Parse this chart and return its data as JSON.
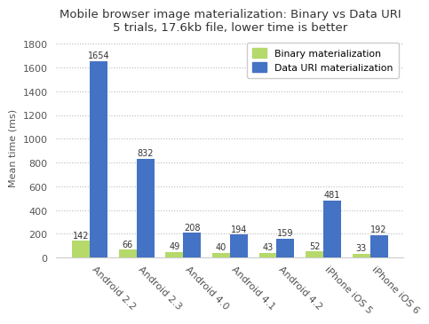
{
  "title_line1": "Mobile browser image materialization: Binary vs Data URI",
  "title_line2": "5 trials, 17.6kb file, lower time is better",
  "categories": [
    "Android 2.2",
    "Android 2.3",
    "Android 4.0",
    "Android 4.1",
    "Android 4.2",
    "iPhone iOS 5",
    "iPhone iOS 6"
  ],
  "binary_values": [
    142,
    66,
    49,
    40,
    43,
    52,
    33
  ],
  "datauri_values": [
    1654,
    832,
    208,
    194,
    159,
    481,
    192
  ],
  "binary_color": "#b5d96b",
  "datauri_color": "#4472c4",
  "ylabel": "Mean time (ms)",
  "ylim": [
    0,
    1850
  ],
  "yticks": [
    0,
    200,
    400,
    600,
    800,
    1000,
    1200,
    1400,
    1600,
    1800
  ],
  "legend_binary": "Binary materialization",
  "legend_datauri": "Data URI materialization",
  "bg_color": "#ffffff",
  "plot_bg_color": "#ffffff",
  "grid_color": "#bbbbbb",
  "bar_width": 0.38,
  "title_fontsize": 9.5,
  "label_fontsize": 8.0,
  "tick_fontsize": 8.0,
  "value_fontsize": 7.0,
  "legend_fontsize": 7.8
}
